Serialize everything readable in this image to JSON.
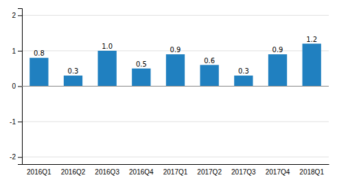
{
  "chart_data": {
    "type": "bar",
    "categories": [
      "2016Q1",
      "2016Q2",
      "2016Q3",
      "2016Q4",
      "2017Q1",
      "2017Q2",
      "2017Q3",
      "2017Q4",
      "2018Q1"
    ],
    "values": [
      0.8,
      0.3,
      1.0,
      0.5,
      0.9,
      0.6,
      0.3,
      0.9,
      1.2
    ],
    "value_labels": [
      "0.8",
      "0.3",
      "1.0",
      "0.5",
      "0.9",
      "0.6",
      "0.3",
      "0.9",
      "1.2"
    ],
    "color": "#2080C0",
    "ylim": [
      -2.2,
      2.2
    ],
    "yticks": [
      -2,
      -1,
      0,
      1,
      2
    ],
    "grid": true,
    "data_labels": true
  }
}
